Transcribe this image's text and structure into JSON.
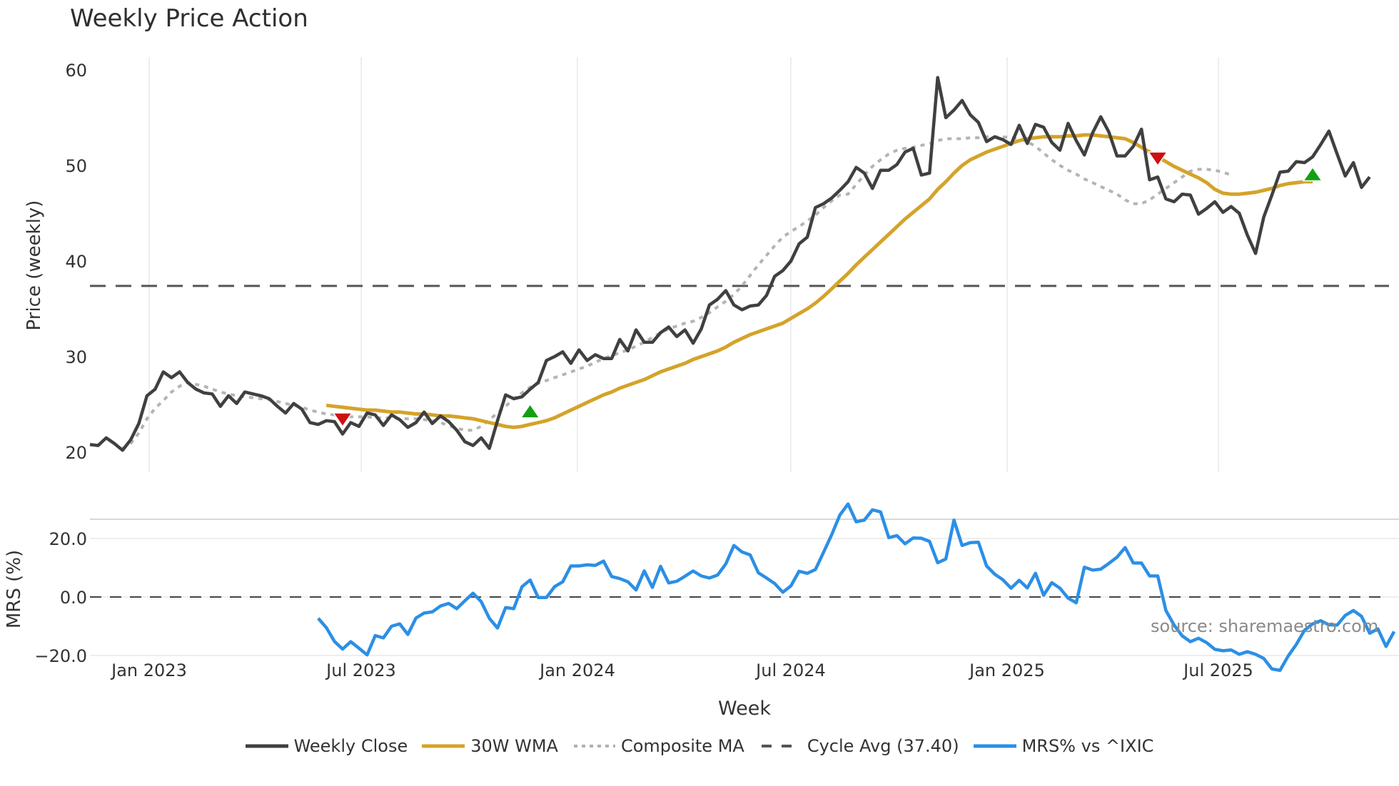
{
  "title": "Weekly Price Action",
  "source_note": "source: sharemaestro.com",
  "legend": [
    {
      "label": "Weekly Close",
      "color": "#404040",
      "style": "solid"
    },
    {
      "label": "30W WMA",
      "color": "#d4a32a",
      "style": "solid"
    },
    {
      "label": "Composite MA",
      "color": "#b0b0b0",
      "style": "dotted"
    },
    {
      "label": "Cycle Avg (37.40)",
      "color": "#555555",
      "style": "dashed"
    },
    {
      "label": "MRS% vs ^IXIC",
      "color": "#2b8fe6",
      "style": "solid"
    }
  ],
  "chart_data": [
    {
      "type": "line",
      "title": "Weekly Price Action",
      "xlabel": "Week",
      "ylabel": "Price (weekly)",
      "ylim": [
        18.5,
        61
      ],
      "yticks": [
        20,
        30,
        40,
        50,
        60
      ],
      "xticks": [
        "Jan 2023",
        "Jul 2023",
        "Jan 2024",
        "Jul 2024",
        "Jan 2025",
        "Jul 2025"
      ],
      "grid": "vertical",
      "x_start": "2022-11-14",
      "x_end": "2025-11-10",
      "x_unit": "week",
      "series": [
        {
          "name": "Weekly Close",
          "values": [
            20.8,
            20.7,
            21.5,
            20.9,
            20.2,
            21.3,
            23.0,
            25.9,
            26.6,
            28.4,
            27.8,
            28.4,
            27.3,
            26.6,
            26.2,
            26.1,
            24.8,
            25.9,
            25.1,
            26.3,
            26.1,
            25.9,
            25.6,
            24.8,
            24.1,
            25.1,
            24.5,
            23.1,
            22.9,
            23.3,
            23.2,
            21.9,
            23.1,
            22.7,
            24.1,
            23.9,
            22.8,
            23.9,
            23.4,
            22.6,
            23.1,
            24.2,
            23.0,
            23.8,
            23.2,
            22.3,
            21.1,
            20.7,
            21.5,
            20.4,
            23.3,
            26.0,
            25.6,
            25.8,
            26.6,
            27.3,
            29.6,
            30.0,
            30.5,
            29.3,
            30.7,
            29.6,
            30.2,
            29.8,
            29.8,
            31.8,
            30.6,
            32.8,
            31.5,
            31.5,
            32.5,
            33.1,
            32.1,
            32.8,
            31.4,
            32.9,
            35.4,
            36.0,
            36.9,
            35.4,
            34.9,
            35.3,
            35.4,
            36.4,
            38.4,
            39.0,
            40.0,
            41.8,
            42.5,
            45.6,
            46.0,
            46.6,
            47.4,
            48.3,
            49.8,
            49.2,
            47.6,
            49.5,
            49.5,
            50.1,
            51.4,
            51.8,
            49.0,
            49.2,
            59.2,
            55.0,
            55.8,
            56.8,
            55.3,
            54.5,
            52.5,
            53.0,
            52.7,
            52.2,
            54.2,
            52.3,
            54.3,
            54.0,
            52.4,
            51.6,
            54.4,
            52.6,
            51.1,
            53.4,
            55.1,
            53.5,
            51.0,
            51.0,
            52.0,
            53.8,
            48.5,
            48.8,
            46.5,
            46.2,
            47.0,
            46.9,
            44.9,
            45.5,
            46.2,
            45.1,
            45.7,
            45.0,
            42.7,
            40.8,
            44.6,
            46.9,
            49.3,
            49.4,
            50.4,
            50.3,
            50.9,
            52.2,
            53.6,
            51.2,
            48.9,
            50.3,
            47.7,
            48.8
          ]
        },
        {
          "name": "30W WMA",
          "start_index": 29,
          "values": [
            24.9,
            24.8,
            24.7,
            24.6,
            24.5,
            24.4,
            24.4,
            24.3,
            24.2,
            24.2,
            24.1,
            24.0,
            24.0,
            23.9,
            23.8,
            23.8,
            23.7,
            23.6,
            23.5,
            23.3,
            23.1,
            22.9,
            22.7,
            22.6,
            22.7,
            22.9,
            23.1,
            23.3,
            23.6,
            24.0,
            24.4,
            24.8,
            25.2,
            25.6,
            26.0,
            26.3,
            26.7,
            27.0,
            27.3,
            27.6,
            28.0,
            28.4,
            28.7,
            29.0,
            29.3,
            29.7,
            30.0,
            30.3,
            30.6,
            31.0,
            31.5,
            31.9,
            32.3,
            32.6,
            32.9,
            33.2,
            33.5,
            34.0,
            34.5,
            35.0,
            35.6,
            36.3,
            37.1,
            37.9,
            38.7,
            39.6,
            40.4,
            41.2,
            42.0,
            42.8,
            43.6,
            44.4,
            45.1,
            45.8,
            46.5,
            47.5,
            48.3,
            49.2,
            50.0,
            50.6,
            51.0,
            51.4,
            51.7,
            52.0,
            52.3,
            52.6,
            52.8,
            52.9,
            53.0,
            53.0,
            53.0,
            53.1,
            53.1,
            53.2,
            53.2,
            53.1,
            53.0,
            52.9,
            52.8,
            52.4,
            51.9,
            51.4,
            50.9,
            50.4,
            49.9,
            49.5,
            49.1,
            48.7,
            48.2,
            47.5,
            47.1,
            47.0,
            47.0,
            47.1,
            47.2,
            47.4,
            47.6,
            47.9,
            48.1,
            48.2,
            48.3,
            48.3
          ]
        },
        {
          "name": "Composite MA",
          "start_index": 4,
          "values": [
            20.4,
            20.9,
            22.0,
            23.5,
            24.6,
            25.4,
            26.3,
            26.9,
            27.3,
            27.1,
            26.9,
            26.6,
            26.3,
            26.1,
            25.9,
            25.8,
            25.7,
            25.6,
            25.5,
            25.3,
            25.1,
            24.9,
            24.7,
            24.4,
            24.2,
            24.0,
            23.9,
            23.8,
            23.7,
            23.7,
            23.7,
            23.6,
            23.6,
            23.6,
            23.5,
            23.5,
            23.5,
            23.4,
            23.3,
            23.1,
            22.8,
            22.5,
            22.3,
            22.3,
            22.7,
            23.4,
            24.1,
            24.8,
            25.6,
            26.2,
            26.8,
            27.2,
            27.5,
            27.8,
            28.1,
            28.4,
            28.7,
            29.0,
            29.4,
            29.8,
            30.1,
            30.4,
            30.7,
            31.1,
            31.5,
            32.0,
            32.5,
            32.9,
            33.2,
            33.5,
            33.7,
            34.1,
            34.6,
            35.2,
            35.8,
            36.5,
            37.4,
            38.5,
            39.6,
            40.6,
            41.6,
            42.5,
            43.1,
            43.6,
            44.2,
            44.8,
            45.6,
            46.3,
            46.9,
            47.0,
            48.0,
            49.0,
            49.9,
            50.6,
            51.2,
            51.6,
            51.8,
            51.9,
            52.1,
            52.3,
            52.6,
            52.8,
            52.8,
            52.8,
            52.9,
            52.9,
            53.0,
            53.0,
            53.0,
            52.9,
            52.8,
            52.5,
            52.0,
            51.3,
            50.6,
            50.0,
            49.5,
            49.1,
            48.6,
            48.2,
            47.8,
            47.4,
            47.0,
            46.4,
            46.0,
            46.0,
            46.4,
            47.0,
            47.6,
            48.2,
            48.8,
            49.4,
            49.6,
            49.6,
            49.5,
            49.3,
            49.0
          ]
        },
        {
          "name": "Cycle Avg (37.40)",
          "type": "hline",
          "value": 37.4
        }
      ],
      "markers": [
        {
          "type": "sell",
          "shape": "triangle-down",
          "color": "#cc1111",
          "index": 31,
          "value": 23.4
        },
        {
          "type": "buy",
          "shape": "triangle-up",
          "color": "#11a011",
          "index": 54,
          "value": 24.3
        },
        {
          "type": "sell",
          "shape": "triangle-down",
          "color": "#cc1111",
          "index": 131,
          "value": 50.7
        },
        {
          "type": "buy",
          "shape": "triangle-up",
          "color": "#11a011",
          "index": 150,
          "value": 49.1
        }
      ]
    },
    {
      "type": "line",
      "title": "",
      "xlabel": "Week",
      "ylabel": "MRS (%)",
      "ylim": [
        -26,
        34
      ],
      "yticks": [
        -20.0,
        0.0,
        20.0
      ],
      "ytick_labels": [
        "−20.0",
        "0.0",
        "20.0"
      ],
      "grid": "horizontal",
      "reference_line": 0.0,
      "series": [
        {
          "name": "MRS% vs ^IXIC",
          "start_index": 28,
          "values": [
            -7.3,
            -10.5,
            -15.2,
            -17.8,
            -15.3,
            -17.5,
            -19.8,
            -13.2,
            -14.0,
            -10.0,
            -9.2,
            -12.8,
            -7.2,
            -5.5,
            -5.1,
            -3.1,
            -2.2,
            -4.0,
            -1.3,
            1.3,
            -1.6,
            -7.3,
            -10.6,
            -3.6,
            -4.0,
            3.5,
            5.8,
            -0.2,
            -0.2,
            3.5,
            5.2,
            10.6,
            10.6,
            11.0,
            10.8,
            12.3,
            7.0,
            6.3,
            5.2,
            2.4,
            8.9,
            3.3,
            10.5,
            4.8,
            5.4,
            7.1,
            8.9,
            7.2,
            6.5,
            7.5,
            11.3,
            17.6,
            15.4,
            14.4,
            8.3,
            6.5,
            4.6,
            1.6,
            3.8,
            8.8,
            8.1,
            9.4,
            15.3,
            21.3,
            28.0,
            31.8,
            25.7,
            26.3,
            29.8,
            29.1,
            20.3,
            21.0,
            18.2,
            20.2,
            20.1,
            19.0,
            11.7,
            13.0,
            26.3,
            17.6,
            18.6,
            18.7,
            10.6,
            7.8,
            5.9,
            3.0,
            5.7,
            3.1,
            8.1,
            0.6,
            4.9,
            3.0,
            -0.4,
            -2.0,
            10.2,
            9.2,
            9.5,
            11.5,
            13.6,
            16.9,
            11.6,
            11.6,
            7.2,
            7.2,
            -4.6,
            -9.6,
            -13.3,
            -15.3,
            -14.1,
            -15.6,
            -17.9,
            -18.4,
            -18.1,
            -19.6,
            -18.7,
            -19.6,
            -21.0,
            -24.6,
            -25.1,
            -20.2,
            -16.2,
            -11.4,
            -9.2,
            -8.1,
            -9.5,
            -9.6,
            -6.3,
            -4.6,
            -6.6,
            -12.4,
            -10.9,
            -16.9,
            -11.8
          ]
        }
      ]
    }
  ]
}
